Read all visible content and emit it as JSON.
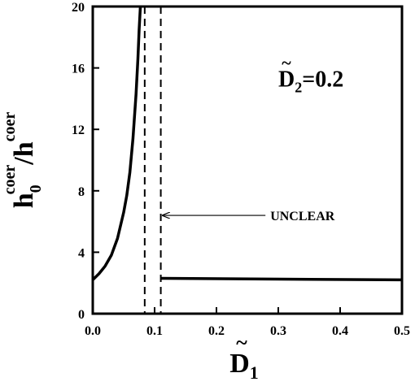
{
  "chart_data": {
    "type": "line",
    "title": "",
    "xlabel": {
      "base": "D",
      "accent": "~",
      "subscript": "1"
    },
    "ylabel": {
      "numerator": "h",
      "numerator_sub": "0",
      "numerator_sup": "coer",
      "separator": "/",
      "denominator": "h",
      "denominator_sup": "coer"
    },
    "xlim": [
      0.0,
      0.5
    ],
    "ylim": [
      0,
      20
    ],
    "x_ticks": [
      "0.0",
      "0.1",
      "0.2",
      "0.3",
      "0.4",
      "0.5"
    ],
    "y_ticks": [
      "0",
      "4",
      "8",
      "12",
      "16",
      "20"
    ],
    "grid": false,
    "series": [
      {
        "style": "solid",
        "x": [
          0.0,
          0.01,
          0.02,
          0.03,
          0.04,
          0.05,
          0.055,
          0.06,
          0.065,
          0.07,
          0.073,
          0.075,
          0.077
        ],
        "y": [
          2.2,
          2.6,
          3.1,
          3.8,
          4.9,
          6.6,
          7.7,
          9.2,
          11.4,
          14.3,
          16.6,
          18.5,
          20
        ]
      },
      {
        "style": "solid",
        "x": [
          0.11,
          0.5
        ],
        "y": [
          2.3,
          2.2
        ]
      }
    ],
    "vlines": [
      {
        "x": 0.084,
        "style": "dashed"
      },
      {
        "x": 0.11,
        "style": "dashed"
      }
    ],
    "annotations": [
      {
        "type": "param-label",
        "base": "D",
        "accent": "~",
        "subscript": "2",
        "rest": "=0.2",
        "x": 0.3,
        "y": 14.8
      },
      {
        "type": "arrow-label",
        "text": "UNCLEAR",
        "text_x": 0.195,
        "text_y": 6.4,
        "arrow_to_x": 0.113,
        "arrow_to_y": 6.4
      }
    ]
  }
}
